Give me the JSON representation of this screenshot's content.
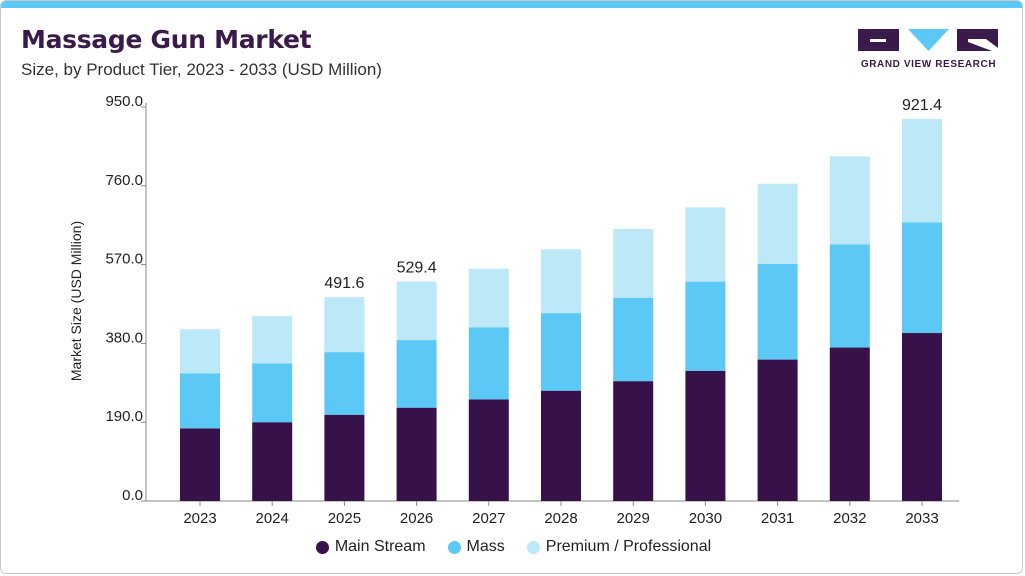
{
  "header": {
    "title": "Massage Gun Market",
    "subtitle": "Size, by Product Tier, 2023 - 2033 (USD Million)"
  },
  "logo": {
    "text": "GRAND VIEW RESEARCH",
    "icon": "grand-view-research-logo"
  },
  "colors": {
    "accent_bar": "#5bc8f5",
    "title": "#3a1a4a",
    "main_stream": "#36114a",
    "mass": "#5bc8f5",
    "premium": "#bde8f8"
  },
  "chart_data": {
    "type": "bar",
    "stacked": true,
    "title": "Massage Gun Market",
    "subtitle": "Size, by Product Tier, 2023 - 2033 (USD Million)",
    "xlabel": "",
    "ylabel": "Market Size (USD Million)",
    "ylim": [
      0,
      950
    ],
    "yticks": [
      "0.0",
      "190.0",
      "380.0",
      "570.0",
      "760.0",
      "950.0"
    ],
    "categories": [
      "2023",
      "2024",
      "2025",
      "2026",
      "2027",
      "2028",
      "2029",
      "2030",
      "2031",
      "2032",
      "2033"
    ],
    "series": [
      {
        "name": "Main Stream",
        "color": "#36114a",
        "values": [
          175,
          190,
          208,
          225,
          245,
          266,
          289,
          314,
          341,
          370,
          405
        ]
      },
      {
        "name": "Mass",
        "color": "#5bc8f5",
        "values": [
          133,
          142,
          151,
          163,
          174,
          187,
          201,
          215,
          231,
          249,
          267
        ]
      },
      {
        "name": "Premium / Professional",
        "color": "#bde8f8",
        "values": [
          106,
          114,
          132.6,
          141.4,
          141,
          154,
          166,
          179,
          193,
          212,
          249.4
        ]
      }
    ],
    "totals": [
      414,
      446,
      491.6,
      529.4,
      560,
      607,
      656,
      708,
      765,
      831,
      921.4
    ],
    "data_labels": [
      {
        "category": "2025",
        "text": "491.6"
      },
      {
        "category": "2026",
        "text": "529.4"
      },
      {
        "category": "2033",
        "text": "921.4"
      }
    ],
    "grid": false,
    "legend_position": "bottom"
  }
}
